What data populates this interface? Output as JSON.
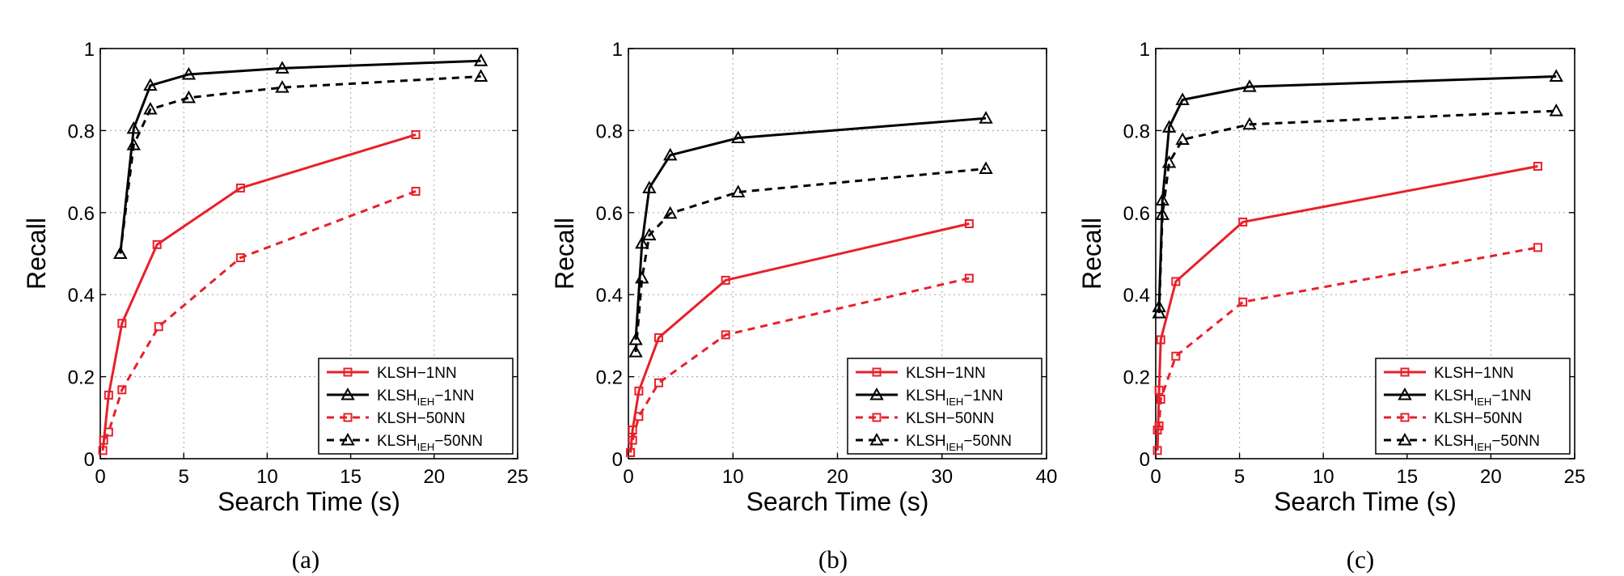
{
  "figure": {
    "captions": [
      "(a)",
      "(b)",
      "(c)"
    ],
    "colors": {
      "red": "#e8202a",
      "black": "#000000",
      "grid": "#b0b0b0"
    }
  },
  "chart_data": [
    {
      "type": "line",
      "panel": "(a)",
      "xlabel": "Search Time (s)",
      "ylabel": "Recall",
      "xlim": [
        0,
        25
      ],
      "ylim": [
        0,
        1
      ],
      "xticks": [
        0,
        5,
        10,
        15,
        20,
        25
      ],
      "yticks": [
        0,
        0.2,
        0.4,
        0.6,
        0.8,
        1
      ],
      "xtick_labels": [
        "0",
        "5",
        "10",
        "15",
        "20",
        "25"
      ],
      "ytick_labels": [
        "0",
        "0.2",
        "0.4",
        "0.6",
        "0.8",
        "1"
      ],
      "grid": true,
      "legend_position": "bottom-right",
      "series": [
        {
          "name": "KLSH−1NN",
          "base": "KLSH",
          "sub": "",
          "suffix": "−1NN",
          "color": "#e8202a",
          "dash": false,
          "marker": "square",
          "x": [
            0.15,
            0.5,
            1.3,
            3.4,
            8.4,
            18.9
          ],
          "y": [
            0.02,
            0.155,
            0.33,
            0.522,
            0.66,
            0.79
          ]
        },
        {
          "name": "KLSHIEH−1NN",
          "base": "KLSH",
          "sub": "IEH",
          "suffix": "−1NN",
          "color": "#000000",
          "dash": false,
          "marker": "triangle",
          "x": [
            1.2,
            2.0,
            3.0,
            5.3,
            10.9,
            22.8
          ],
          "y": [
            0.5,
            0.805,
            0.91,
            0.937,
            0.952,
            0.97
          ]
        },
        {
          "name": "KLSH−50NN",
          "base": "KLSH",
          "sub": "",
          "suffix": "−50NN",
          "color": "#e8202a",
          "dash": true,
          "marker": "square",
          "x": [
            0.2,
            0.5,
            1.3,
            3.5,
            8.4,
            18.9
          ],
          "y": [
            0.045,
            0.065,
            0.168,
            0.322,
            0.49,
            0.652
          ]
        },
        {
          "name": "KLSHIEH−50NN",
          "base": "KLSH",
          "sub": "IEH",
          "suffix": "−50NN",
          "color": "#000000",
          "dash": true,
          "marker": "triangle",
          "x": [
            1.2,
            2.0,
            3.0,
            5.3,
            10.9,
            22.8
          ],
          "y": [
            0.5,
            0.765,
            0.852,
            0.88,
            0.905,
            0.932
          ]
        }
      ]
    },
    {
      "type": "line",
      "panel": "(b)",
      "xlabel": "Search Time (s)",
      "ylabel": "Recall",
      "xlim": [
        0,
        40
      ],
      "ylim": [
        0,
        1
      ],
      "xticks": [
        0,
        10,
        20,
        30,
        40
      ],
      "yticks": [
        0,
        0.2,
        0.4,
        0.6,
        0.8,
        1
      ],
      "xtick_labels": [
        "0",
        "10",
        "20",
        "30",
        "40"
      ],
      "ytick_labels": [
        "0",
        "0.2",
        "0.4",
        "0.6",
        "0.8",
        "1"
      ],
      "grid": true,
      "legend_position": "bottom-right",
      "series": [
        {
          "name": "KLSH−1NN",
          "base": "KLSH",
          "sub": "",
          "suffix": "−1NN",
          "color": "#e8202a",
          "dash": false,
          "marker": "square",
          "x": [
            0.2,
            0.4,
            1.0,
            2.9,
            9.3,
            32.6
          ],
          "y": [
            0.015,
            0.07,
            0.165,
            0.295,
            0.435,
            0.573
          ]
        },
        {
          "name": "KLSHIEH−1NN",
          "base": "KLSH",
          "sub": "IEH",
          "suffix": "−1NN",
          "color": "#000000",
          "dash": false,
          "marker": "triangle",
          "x": [
            0.7,
            1.3,
            2.0,
            4.0,
            10.5,
            34.2
          ],
          "y": [
            0.29,
            0.525,
            0.66,
            0.74,
            0.782,
            0.83
          ]
        },
        {
          "name": "KLSH−50NN",
          "base": "KLSH",
          "sub": "",
          "suffix": "−50NN",
          "color": "#e8202a",
          "dash": true,
          "marker": "square",
          "x": [
            0.2,
            0.4,
            1.0,
            2.9,
            9.3,
            32.6
          ],
          "y": [
            0.015,
            0.045,
            0.103,
            0.185,
            0.302,
            0.44
          ]
        },
        {
          "name": "KLSHIEH−50NN",
          "base": "KLSH",
          "sub": "IEH",
          "suffix": "−50NN",
          "color": "#000000",
          "dash": true,
          "marker": "triangle",
          "x": [
            0.7,
            1.3,
            2.0,
            4.0,
            10.5,
            34.2
          ],
          "y": [
            0.26,
            0.44,
            0.545,
            0.598,
            0.65,
            0.707
          ]
        }
      ]
    },
    {
      "type": "line",
      "panel": "(c)",
      "xlabel": "Search Time (s)",
      "ylabel": "Recall",
      "xlim": [
        0,
        25
      ],
      "ylim": [
        0,
        1
      ],
      "xticks": [
        0,
        5,
        10,
        15,
        20,
        25
      ],
      "yticks": [
        0,
        0.2,
        0.4,
        0.6,
        0.8,
        1
      ],
      "xtick_labels": [
        "0",
        "5",
        "10",
        "15",
        "20",
        "25"
      ],
      "ytick_labels": [
        "0",
        "0.2",
        "0.4",
        "0.6",
        "0.8",
        "1"
      ],
      "grid": true,
      "legend_position": "bottom-right",
      "series": [
        {
          "name": "KLSH−1NN",
          "base": "KLSH",
          "sub": "",
          "suffix": "−1NN",
          "color": "#e8202a",
          "dash": false,
          "marker": "square",
          "x": [
            0.1,
            0.2,
            0.3,
            1.2,
            5.2,
            22.8
          ],
          "y": [
            0.02,
            0.167,
            0.29,
            0.432,
            0.577,
            0.713
          ]
        },
        {
          "name": "KLSHIEH−1NN",
          "base": "KLSH",
          "sub": "IEH",
          "suffix": "−1NN",
          "color": "#000000",
          "dash": false,
          "marker": "triangle",
          "x": [
            0.2,
            0.4,
            0.8,
            1.6,
            5.6,
            23.9
          ],
          "y": [
            0.37,
            0.63,
            0.808,
            0.875,
            0.907,
            0.932
          ]
        },
        {
          "name": "KLSH−50NN",
          "base": "KLSH",
          "sub": "",
          "suffix": "−50NN",
          "color": "#e8202a",
          "dash": true,
          "marker": "square",
          "x": [
            0.1,
            0.2,
            0.3,
            1.2,
            5.2,
            22.8
          ],
          "y": [
            0.07,
            0.08,
            0.145,
            0.25,
            0.382,
            0.515
          ]
        },
        {
          "name": "KLSHIEH−50NN",
          "base": "KLSH",
          "sub": "IEH",
          "suffix": "−50NN",
          "color": "#000000",
          "dash": true,
          "marker": "triangle",
          "x": [
            0.2,
            0.4,
            0.8,
            1.6,
            5.6,
            23.9
          ],
          "y": [
            0.355,
            0.595,
            0.722,
            0.778,
            0.815,
            0.848
          ]
        }
      ]
    }
  ]
}
